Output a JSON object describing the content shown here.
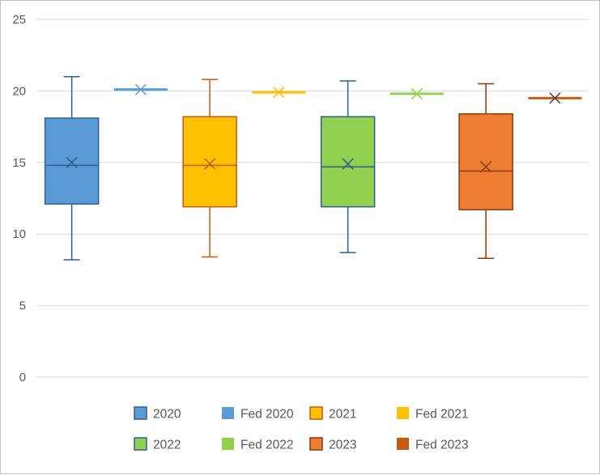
{
  "chart_data": {
    "type": "boxplot",
    "title": "",
    "xlabel": "",
    "ylabel": "",
    "ylim": [
      0,
      25
    ],
    "yticks": [
      0,
      5,
      10,
      15,
      20,
      25
    ],
    "grid": true,
    "legend_position": "bottom",
    "series": [
      {
        "name": "2020",
        "kind": "box",
        "color": "#5b9bd5",
        "edge": "#2e5f92",
        "min": 8.2,
        "q1": 12.1,
        "median": 14.8,
        "q3": 18.1,
        "max": 21.0,
        "mean": 15.0
      },
      {
        "name": "Fed 2020",
        "kind": "fed",
        "color": "#5b9bd5",
        "edge": "#5b9bd5",
        "value": 20.1
      },
      {
        "name": "2021",
        "kind": "box",
        "color": "#ffc000",
        "edge": "#c55a11",
        "min": 8.4,
        "q1": 11.9,
        "median": 14.8,
        "q3": 18.2,
        "max": 20.8,
        "mean": 14.9
      },
      {
        "name": "Fed 2021",
        "kind": "fed",
        "color": "#ffc000",
        "edge": "#ffc000",
        "value": 19.9
      },
      {
        "name": "2022",
        "kind": "box",
        "color": "#92d050",
        "edge": "#2e5f92",
        "min": 8.7,
        "q1": 11.9,
        "median": 14.7,
        "q3": 18.2,
        "max": 20.7,
        "mean": 14.9
      },
      {
        "name": "Fed 2022",
        "kind": "fed",
        "color": "#92d050",
        "edge": "#92d050",
        "value": 19.8
      },
      {
        "name": "2023",
        "kind": "box",
        "color": "#ed7d31",
        "edge": "#843c0c",
        "min": 8.3,
        "q1": 11.7,
        "median": 14.4,
        "q3": 18.4,
        "max": 20.5,
        "mean": 14.7
      },
      {
        "name": "Fed 2023",
        "kind": "fed",
        "color": "#c55a11",
        "edge": "#7f3f0f",
        "value": 19.5
      }
    ]
  },
  "colors": {
    "grid": "#d9d9d9",
    "axis_text": "#595959"
  }
}
